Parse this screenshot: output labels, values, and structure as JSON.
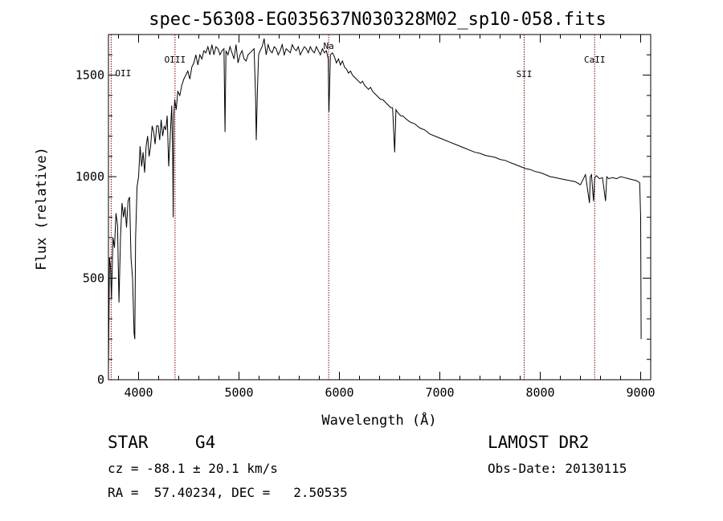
{
  "chart_data": {
    "type": "line",
    "title": "spec-56308-EG035637N030328M02_sp10-058.fits",
    "xlabel": "Wavelength (Å)",
    "ylabel": "Flux (relative)",
    "xlim": [
      3700,
      9100
    ],
    "ylim": [
      0,
      1700
    ],
    "xticks": [
      4000,
      5000,
      6000,
      7000,
      8000,
      9000
    ],
    "yticks": [
      0,
      500,
      1000,
      1500
    ],
    "grid": false,
    "series": [
      {
        "x": [
          3700,
          3710,
          3720,
          3730,
          3745,
          3760,
          3775,
          3790,
          3805,
          3820,
          3835,
          3850,
          3865,
          3880,
          3895,
          3910,
          3925,
          3940,
          3955,
          3962,
          3970,
          3985,
          4000,
          4015,
          4030,
          4045,
          4060,
          4075,
          4090,
          4105,
          4120,
          4135,
          4150,
          4165,
          4180,
          4195,
          4210,
          4225,
          4240,
          4255,
          4270,
          4285,
          4300,
          4315,
          4330,
          4340,
          4345,
          4350,
          4360,
          4375,
          4390,
          4410,
          4430,
          4450,
          4470,
          4490,
          4510,
          4530,
          4550,
          4570,
          4590,
          4610,
          4630,
          4650,
          4670,
          4690,
          4710,
          4730,
          4750,
          4770,
          4790,
          4810,
          4830,
          4850,
          4861,
          4870,
          4890,
          4910,
          4930,
          4950,
          4970,
          4990,
          5010,
          5030,
          5050,
          5070,
          5090,
          5110,
          5130,
          5150,
          5165,
          5172,
          5183,
          5195,
          5210,
          5230,
          5250,
          5270,
          5290,
          5310,
          5330,
          5350,
          5370,
          5390,
          5410,
          5430,
          5450,
          5470,
          5490,
          5510,
          5530,
          5550,
          5570,
          5590,
          5610,
          5630,
          5650,
          5670,
          5690,
          5710,
          5730,
          5750,
          5770,
          5790,
          5810,
          5830,
          5850,
          5870,
          5889,
          5893,
          5896,
          5910,
          5930,
          5950,
          5970,
          5990,
          6010,
          6030,
          6050,
          6070,
          6090,
          6110,
          6130,
          6150,
          6170,
          6190,
          6210,
          6230,
          6250,
          6270,
          6290,
          6310,
          6330,
          6350,
          6370,
          6390,
          6410,
          6430,
          6450,
          6470,
          6490,
          6510,
          6530,
          6550,
          6563,
          6575,
          6590,
          6610,
          6630,
          6650,
          6700,
          6750,
          6800,
          6850,
          6900,
          6950,
          7000,
          7050,
          7100,
          7150,
          7200,
          7250,
          7300,
          7350,
          7400,
          7450,
          7500,
          7550,
          7600,
          7650,
          7700,
          7750,
          7800,
          7850,
          7900,
          7950,
          8000,
          8050,
          8100,
          8150,
          8200,
          8250,
          8300,
          8350,
          8400,
          8450,
          8490,
          8498,
          8510,
          8530,
          8542,
          8560,
          8590,
          8620,
          8650,
          8662,
          8680,
          8720,
          8760,
          8800,
          8840,
          8880,
          8920,
          8960,
          8990,
          9000,
          9005
        ],
        "y": [
          50,
          600,
          560,
          400,
          700,
          650,
          820,
          760,
          380,
          700,
          870,
          800,
          850,
          750,
          880,
          900,
          600,
          500,
          230,
          200,
          700,
          950,
          1000,
          1150,
          1050,
          1120,
          1020,
          1150,
          1200,
          1100,
          1150,
          1250,
          1220,
          1160,
          1250,
          1250,
          1180,
          1280,
          1200,
          1250,
          1230,
          1300,
          1050,
          1200,
          1350,
          1100,
          800,
          1300,
          1380,
          1330,
          1420,
          1400,
          1450,
          1480,
          1500,
          1520,
          1480,
          1540,
          1560,
          1600,
          1550,
          1600,
          1580,
          1620,
          1610,
          1640,
          1600,
          1650,
          1600,
          1640,
          1630,
          1600,
          1620,
          1630,
          1220,
          1620,
          1600,
          1640,
          1610,
          1580,
          1650,
          1560,
          1600,
          1620,
          1580,
          1570,
          1600,
          1610,
          1620,
          1630,
          1400,
          1180,
          1420,
          1600,
          1620,
          1640,
          1680,
          1600,
          1650,
          1620,
          1610,
          1640,
          1630,
          1600,
          1620,
          1650,
          1600,
          1630,
          1620,
          1610,
          1650,
          1630,
          1620,
          1640,
          1600,
          1620,
          1640,
          1630,
          1610,
          1640,
          1620,
          1610,
          1640,
          1620,
          1600,
          1630,
          1610,
          1620,
          1580,
          1400,
          1320,
          1600,
          1610,
          1590,
          1560,
          1580,
          1550,
          1570,
          1540,
          1530,
          1510,
          1520,
          1500,
          1490,
          1480,
          1470,
          1460,
          1470,
          1450,
          1440,
          1430,
          1440,
          1420,
          1410,
          1400,
          1390,
          1380,
          1380,
          1370,
          1360,
          1350,
          1340,
          1340,
          1120,
          1330,
          1320,
          1310,
          1300,
          1300,
          1290,
          1270,
          1260,
          1240,
          1230,
          1210,
          1200,
          1190,
          1180,
          1170,
          1160,
          1150,
          1140,
          1130,
          1120,
          1115,
          1105,
          1100,
          1095,
          1085,
          1080,
          1070,
          1060,
          1050,
          1040,
          1035,
          1025,
          1020,
          1010,
          1000,
          995,
          990,
          985,
          980,
          975,
          960,
          1010,
          870,
          1000,
          1010,
          880,
          995,
          1005,
          990,
          995,
          880,
          1000,
          990,
          995,
          990,
          1000,
          995,
          990,
          985,
          980,
          970,
          800,
          200
        ]
      }
    ],
    "annotations": [
      {
        "label": "OII",
        "x": 3727
      },
      {
        "label": "OIII",
        "x": 4363
      },
      {
        "label": "Na",
        "x": 5893
      },
      {
        "label": "SII",
        "x": 7840
      },
      {
        "label": "CaII",
        "x": 8542
      }
    ]
  },
  "info": {
    "object_class": "STAR",
    "subclass": "G4",
    "survey": "LAMOST DR2",
    "cz": "cz = -88.1 ± 20.1 km/s",
    "obs_date": "Obs-Date: 20130115",
    "coords": "RA =  57.40234, DEC =   2.50535"
  },
  "colors": {
    "line": "#000000",
    "annotation": "#8b0000"
  }
}
